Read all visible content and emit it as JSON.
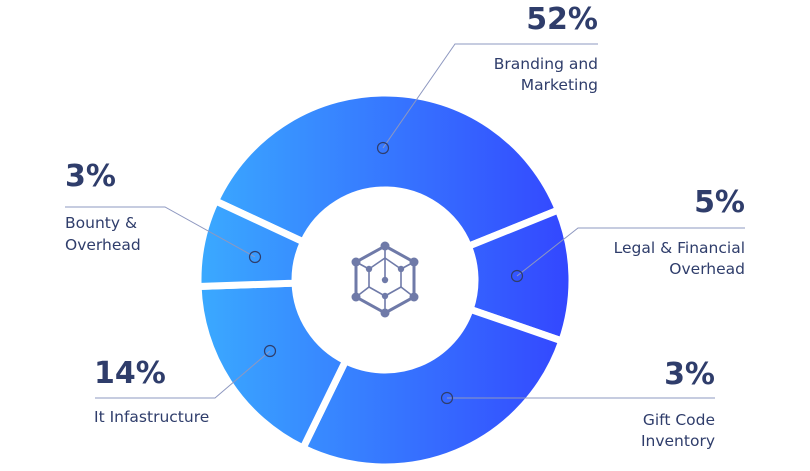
{
  "chart_data": {
    "type": "pie",
    "variant": "donut",
    "categories": [
      "Branding and Marketing",
      "Legal & Financial Overhead",
      "Gift Code Inventory",
      "It Infastructure",
      "Bounty & Overhead"
    ],
    "values": [
      52,
      5,
      3,
      14,
      3
    ],
    "data_labels": [
      "52%",
      "5%",
      "3%",
      "14%",
      "3%"
    ],
    "label_lines": [
      [
        "Branding and",
        "Marketing"
      ],
      [
        "Legal & Financial",
        "Overhead"
      ],
      [
        "Gift Code",
        "Inventory"
      ],
      [
        "It Infastructure"
      ],
      [
        "Bounty &",
        "Overhead"
      ]
    ],
    "center_icon": "hexagon-network-icon",
    "colors": {
      "gradient_start": "#3aaaff",
      "gradient_end": "#3346ff",
      "text": "#2f3d6b",
      "leader": "#8e98c0",
      "icon": "#6f7aa8"
    }
  }
}
